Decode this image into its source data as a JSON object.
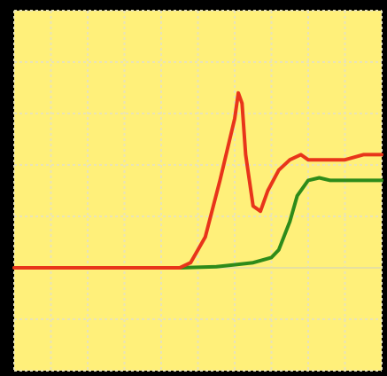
{
  "chart_data": {
    "type": "line",
    "title": "",
    "xlabel": "",
    "ylabel": "",
    "xlim": [
      0,
      10
    ],
    "ylim": [
      -2,
      5
    ],
    "grid": true,
    "legend": "none",
    "colors": {
      "background": "#FFF07A",
      "frame": "#000000",
      "grid": "#E9E4B8",
      "zero_line": "#E6E0A0",
      "series_red": "#E8351A",
      "series_green": "#2E8B1A"
    },
    "x_grid": [
      0,
      1,
      2,
      3,
      4,
      5,
      6,
      7,
      8,
      9,
      10
    ],
    "y_grid": [
      -2,
      -1,
      0,
      1,
      2,
      3,
      4,
      5
    ],
    "series": [
      {
        "color": "#E8351A",
        "x": [
          0,
          2.0,
          4.5,
          4.8,
          5.2,
          5.6,
          6.0,
          6.1,
          6.2,
          6.3,
          6.5,
          6.7,
          6.9,
          7.2,
          7.5,
          7.8,
          8.0,
          8.5,
          9.0,
          9.5,
          10.0
        ],
        "y": [
          0,
          0,
          0,
          0.1,
          0.6,
          1.7,
          2.9,
          3.4,
          3.2,
          2.2,
          1.2,
          1.1,
          1.5,
          1.9,
          2.1,
          2.2,
          2.1,
          2.1,
          2.1,
          2.2,
          2.2
        ]
      },
      {
        "color": "#2E8B1A",
        "x": [
          0,
          4.5,
          5.5,
          6.5,
          7.0,
          7.2,
          7.5,
          7.7,
          8.0,
          8.3,
          8.6,
          9.0,
          9.5,
          10.0
        ],
        "y": [
          0,
          0,
          0.02,
          0.1,
          0.2,
          0.35,
          0.9,
          1.4,
          1.7,
          1.75,
          1.7,
          1.7,
          1.7,
          1.7
        ]
      }
    ]
  }
}
